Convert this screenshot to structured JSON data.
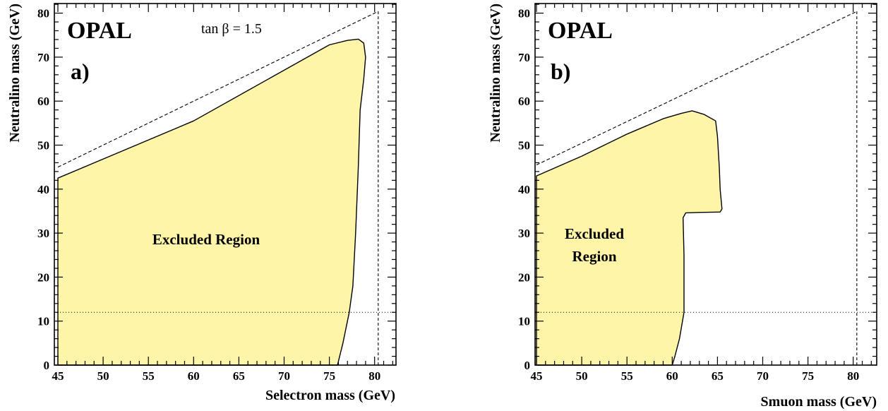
{
  "chart_data": [
    {
      "type": "area",
      "experiment_label": "OPAL",
      "panel_label": "a)",
      "annotation": "tan β = 1.5",
      "xlabel": "Selectron mass (GeV)",
      "ylabel": "Neutralino mass (GeV)",
      "xlim": [
        45,
        82.5
      ],
      "ylim": [
        0,
        82
      ],
      "x_ticks": [
        "45",
        "50",
        "55",
        "60",
        "65",
        "70",
        "75",
        "80"
      ],
      "y_ticks": [
        "0",
        "10",
        "20",
        "30",
        "40",
        "50",
        "60",
        "70",
        "80"
      ],
      "region_label": "Excluded Region",
      "region_color": "#fff5a8",
      "excluded_region": [
        {
          "x": 45,
          "y": 0
        },
        {
          "x": 45,
          "y": 42.5
        },
        {
          "x": 60,
          "y": 55.5
        },
        {
          "x": 75,
          "y": 72.8
        },
        {
          "x": 77,
          "y": 73.8
        },
        {
          "x": 78.2,
          "y": 74.1
        },
        {
          "x": 78.8,
          "y": 73.2
        },
        {
          "x": 79.0,
          "y": 70
        },
        {
          "x": 78.8,
          "y": 65
        },
        {
          "x": 78.4,
          "y": 58
        },
        {
          "x": 78.2,
          "y": 45
        },
        {
          "x": 77.9,
          "y": 30
        },
        {
          "x": 77.6,
          "y": 18
        },
        {
          "x": 77.2,
          "y": 12
        },
        {
          "x": 76.5,
          "y": 5
        },
        {
          "x": 75.9,
          "y": 0
        }
      ],
      "kinematic_limit_line": [
        {
          "x": 45,
          "y": 45
        },
        {
          "x": 80.4,
          "y": 80.4
        }
      ],
      "vertical_line_x": 80.4,
      "horizontal_line_y": 12
    },
    {
      "type": "area",
      "experiment_label": "OPAL",
      "panel_label": "b)",
      "xlabel": "Smuon mass (GeV)",
      "ylabel": "Neutralino mass (GeV)",
      "xlim": [
        45,
        82.5
      ],
      "ylim": [
        0,
        82
      ],
      "x_ticks": [
        "45",
        "50",
        "55",
        "60",
        "65",
        "70",
        "75",
        "80"
      ],
      "y_ticks": [
        "0",
        "10",
        "20",
        "30",
        "40",
        "50",
        "60",
        "70",
        "80"
      ],
      "region_label": [
        "Excluded",
        "Region"
      ],
      "region_color": "#fff5a8",
      "excluded_region": [
        {
          "x": 45,
          "y": 0
        },
        {
          "x": 45,
          "y": 43
        },
        {
          "x": 50,
          "y": 47.5
        },
        {
          "x": 55,
          "y": 52.5
        },
        {
          "x": 59,
          "y": 56
        },
        {
          "x": 61,
          "y": 57.2
        },
        {
          "x": 62.2,
          "y": 57.8
        },
        {
          "x": 63.5,
          "y": 57
        },
        {
          "x": 64.8,
          "y": 55.5
        },
        {
          "x": 65.0,
          "y": 52
        },
        {
          "x": 65.2,
          "y": 45
        },
        {
          "x": 65.3,
          "y": 40
        },
        {
          "x": 65.5,
          "y": 35.5
        },
        {
          "x": 65.3,
          "y": 34.8
        },
        {
          "x": 63,
          "y": 34.7
        },
        {
          "x": 61.5,
          "y": 34.6
        },
        {
          "x": 61.2,
          "y": 33.5
        },
        {
          "x": 61.3,
          "y": 25
        },
        {
          "x": 61.3,
          "y": 12
        },
        {
          "x": 60.8,
          "y": 6
        },
        {
          "x": 60.3,
          "y": 2
        },
        {
          "x": 60.0,
          "y": 0
        }
      ],
      "kinematic_limit_line": [
        {
          "x": 45,
          "y": 45.5
        },
        {
          "x": 80.4,
          "y": 80.4
        }
      ],
      "vertical_line_x": 80.4,
      "horizontal_line_y": 12
    }
  ]
}
